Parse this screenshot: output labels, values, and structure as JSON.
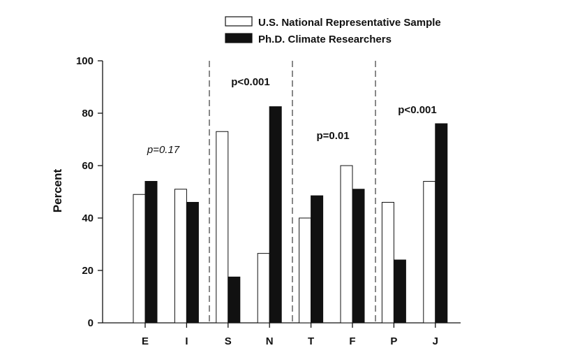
{
  "chart_data": {
    "type": "bar",
    "categories": [
      "E",
      "I",
      "S",
      "N",
      "T",
      "F",
      "P",
      "J"
    ],
    "series": [
      {
        "name": "U.S. National Representative Sample",
        "values": [
          49,
          51,
          73,
          26.5,
          40,
          60,
          46,
          54
        ]
      },
      {
        "name": "Ph.D. Climate Researchers",
        "values": [
          54,
          46,
          17.5,
          82.5,
          48.5,
          51,
          24,
          76
        ]
      }
    ],
    "xlabel": "",
    "ylabel": "Percent",
    "ylim": [
      0,
      100
    ],
    "yticks": [
      0,
      20,
      40,
      60,
      80,
      100
    ],
    "grid": false,
    "legend_position": "top-right",
    "series_colors": [
      "#ffffff",
      "#111111"
    ],
    "annotations": [
      {
        "text": "p=0.17",
        "group": 0,
        "style": "italic"
      },
      {
        "text": "p<0.001",
        "group": 1,
        "style": "bold"
      },
      {
        "text": "p=0.01",
        "group": 2,
        "style": "bold"
      },
      {
        "text": "p<0.001",
        "group": 3,
        "style": "bold"
      }
    ]
  }
}
